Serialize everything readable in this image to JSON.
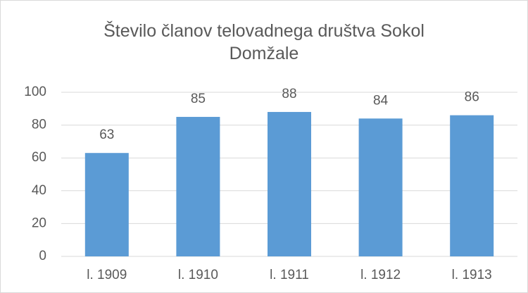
{
  "chart_data": {
    "type": "bar",
    "title": "Število članov telovadnega društva Sokol Domžale",
    "categories": [
      "l. 1909",
      "l. 1910",
      "l. 1911",
      "l. 1912",
      "l. 1913"
    ],
    "values": [
      63,
      85,
      88,
      84,
      86
    ],
    "color": "#5b9bd5",
    "ylim": [
      0,
      100
    ],
    "yticks": [
      0,
      20,
      40,
      60,
      80,
      100
    ],
    "grid": true
  }
}
